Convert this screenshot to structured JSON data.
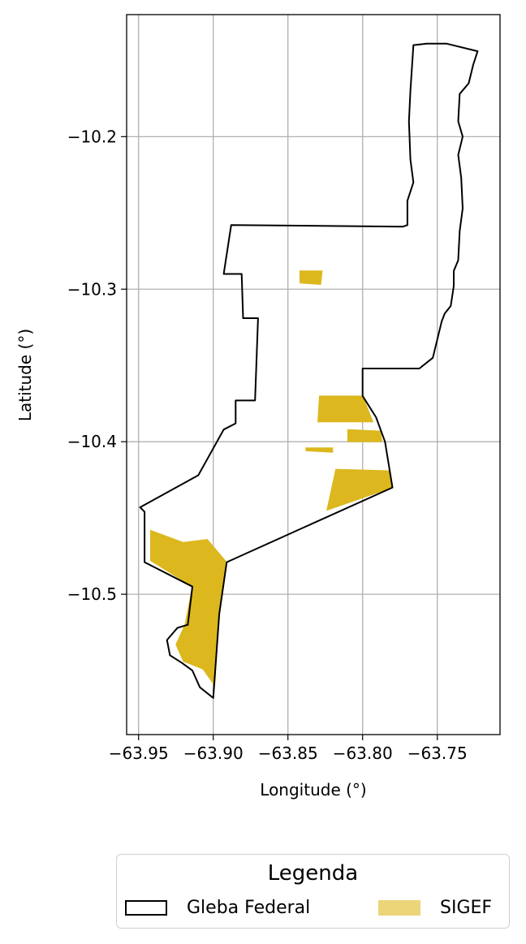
{
  "chart_data": {
    "type": "map",
    "xlabel": "Longitude (°)",
    "ylabel": "Latitude (°)",
    "xlim": [
      -63.958,
      -63.708
    ],
    "ylim": [
      -10.592,
      -10.12
    ],
    "xticks": [
      -63.95,
      -63.9,
      -63.85,
      -63.8,
      -63.75
    ],
    "xtick_labels": [
      "−63.95",
      "−63.90",
      "−63.85",
      "−63.80",
      "−63.75"
    ],
    "yticks": [
      -10.2,
      -10.3,
      -10.4,
      -10.5
    ],
    "ytick_labels": [
      "−10.2",
      "−10.3",
      "−10.4",
      "−10.5"
    ],
    "grid": true,
    "colors": {
      "gleba_edge": "#000000",
      "sigef_fill": "#dcb81e",
      "grid": "#b0b0b0"
    },
    "gleba_federal": [
      [
        -63.766,
        -10.14
      ],
      [
        -63.757,
        -10.139
      ],
      [
        -63.744,
        -10.139
      ],
      [
        -63.723,
        -10.144
      ],
      [
        -63.726,
        -10.153
      ],
      [
        -63.729,
        -10.165
      ],
      [
        -63.735,
        -10.172
      ],
      [
        -63.736,
        -10.19
      ],
      [
        -63.733,
        -10.2
      ],
      [
        -63.736,
        -10.212
      ],
      [
        -63.734,
        -10.227
      ],
      [
        -63.733,
        -10.247
      ],
      [
        -63.735,
        -10.262
      ],
      [
        -63.736,
        -10.281
      ],
      [
        -63.739,
        -10.288
      ],
      [
        -63.739,
        -10.298
      ],
      [
        -63.741,
        -10.311
      ],
      [
        -63.745,
        -10.316
      ],
      [
        -63.747,
        -10.321
      ],
      [
        -63.75,
        -10.333
      ],
      [
        -63.753,
        -10.345
      ],
      [
        -63.762,
        -10.352
      ],
      [
        -63.8,
        -10.352
      ],
      [
        -63.8,
        -10.37
      ],
      [
        -63.791,
        -10.384
      ],
      [
        -63.785,
        -10.4
      ],
      [
        -63.78,
        -10.43
      ],
      [
        -63.891,
        -10.479
      ],
      [
        -63.896,
        -10.513
      ],
      [
        -63.9,
        -10.568
      ],
      [
        -63.909,
        -10.561
      ],
      [
        -63.914,
        -10.55
      ],
      [
        -63.921,
        -10.545
      ],
      [
        -63.929,
        -10.54
      ],
      [
        -63.931,
        -10.53
      ],
      [
        -63.924,
        -10.522
      ],
      [
        -63.917,
        -10.52
      ],
      [
        -63.914,
        -10.495
      ],
      [
        -63.946,
        -10.479
      ],
      [
        -63.946,
        -10.446
      ],
      [
        -63.949,
        -10.443
      ],
      [
        -63.91,
        -10.422
      ],
      [
        -63.893,
        -10.392
      ],
      [
        -63.885,
        -10.388
      ],
      [
        -63.885,
        -10.373
      ],
      [
        -63.872,
        -10.373
      ],
      [
        -63.87,
        -10.319
      ],
      [
        -63.88,
        -10.319
      ],
      [
        -63.881,
        -10.29
      ],
      [
        -63.893,
        -10.29
      ],
      [
        -63.888,
        -10.258
      ],
      [
        -63.773,
        -10.259
      ],
      [
        -63.77,
        -10.258
      ],
      [
        -63.77,
        -10.242
      ],
      [
        -63.766,
        -10.23
      ],
      [
        -63.768,
        -10.215
      ],
      [
        -63.769,
        -10.19
      ],
      [
        -63.768,
        -10.17
      ],
      [
        -63.766,
        -10.14
      ]
    ],
    "sigef": [
      [
        [
          -63.842,
          -10.288
        ],
        [
          -63.827,
          -10.288
        ],
        [
          -63.828,
          -10.297
        ],
        [
          -63.842,
          -10.296
        ]
      ],
      [
        [
          -63.829,
          -10.37
        ],
        [
          -63.8,
          -10.37
        ],
        [
          -63.793,
          -10.387
        ],
        [
          -63.83,
          -10.387
        ]
      ],
      [
        [
          -63.81,
          -10.392
        ],
        [
          -63.788,
          -10.393
        ],
        [
          -63.787,
          -10.4
        ],
        [
          -63.81,
          -10.4
        ]
      ],
      [
        [
          -63.838,
          -10.404
        ],
        [
          -63.82,
          -10.404
        ],
        [
          -63.82,
          -10.407
        ],
        [
          -63.838,
          -10.406
        ]
      ],
      [
        [
          -63.818,
          -10.418
        ],
        [
          -63.782,
          -10.419
        ],
        [
          -63.78,
          -10.43
        ],
        [
          -63.824,
          -10.445
        ]
      ],
      [
        [
          -63.942,
          -10.458
        ],
        [
          -63.92,
          -10.466
        ],
        [
          -63.904,
          -10.464
        ],
        [
          -63.891,
          -10.479
        ],
        [
          -63.896,
          -10.513
        ],
        [
          -63.899,
          -10.56
        ],
        [
          -63.907,
          -10.549
        ],
        [
          -63.92,
          -10.544
        ],
        [
          -63.925,
          -10.533
        ],
        [
          -63.919,
          -10.52
        ],
        [
          -63.914,
          -10.495
        ],
        [
          -63.942,
          -10.478
        ]
      ]
    ],
    "legend": {
      "title": "Legenda",
      "position": "bottom-center",
      "items": [
        {
          "label": "Gleba Federal",
          "style": "outline"
        },
        {
          "label": "SIGEF",
          "style": "fill"
        }
      ]
    }
  }
}
